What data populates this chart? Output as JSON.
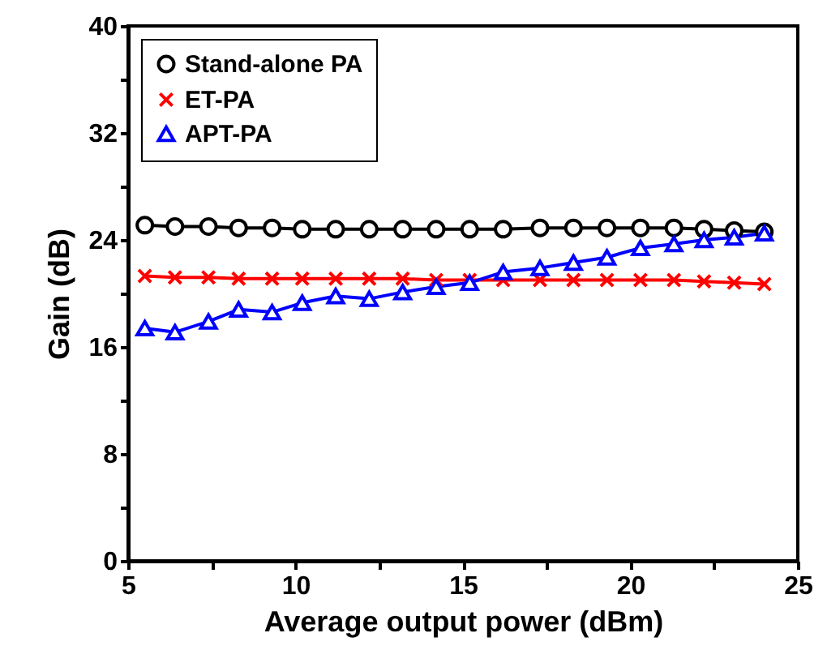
{
  "chart_data": {
    "type": "line",
    "xlabel": "Average output power (dBm)",
    "ylabel": "Gain (dB)",
    "x": [
      5.5,
      6.4,
      7.4,
      8.3,
      9.3,
      10.2,
      11.2,
      12.2,
      13.2,
      14.2,
      15.2,
      16.2,
      17.3,
      18.3,
      19.3,
      20.3,
      21.3,
      22.2,
      23.1,
      24.0
    ],
    "series": [
      {
        "name": "Stand-alone PA",
        "color": "#000000",
        "marker": "circle",
        "values": [
          25.1,
          25.0,
          25.0,
          24.9,
          24.9,
          24.8,
          24.8,
          24.8,
          24.8,
          24.8,
          24.8,
          24.8,
          24.9,
          24.9,
          24.9,
          24.9,
          24.9,
          24.8,
          24.7,
          24.6
        ]
      },
      {
        "name": "ET-PA",
        "color": "#ff0000",
        "marker": "cross",
        "values": [
          21.3,
          21.2,
          21.2,
          21.1,
          21.1,
          21.1,
          21.1,
          21.1,
          21.1,
          21.0,
          21.0,
          21.0,
          21.0,
          21.0,
          21.0,
          21.0,
          21.0,
          20.9,
          20.8,
          20.7
        ]
      },
      {
        "name": "APT-PA",
        "color": "#0000ff",
        "marker": "triangle",
        "values": [
          17.4,
          17.1,
          17.9,
          18.8,
          18.6,
          19.3,
          19.8,
          19.6,
          20.1,
          20.5,
          20.8,
          21.6,
          21.9,
          22.3,
          22.7,
          23.4,
          23.7,
          24.0,
          24.2,
          24.5
        ]
      }
    ],
    "xlim": [
      5,
      25
    ],
    "xticks": [
      5,
      {
        "value": 7.5,
        "label": null
      },
      10,
      {
        "value": 12.5,
        "label": null
      },
      15,
      {
        "value": 17.5,
        "label": null
      },
      20,
      {
        "value": 22.5,
        "label": null
      },
      25
    ],
    "ylim": [
      0,
      40
    ],
    "yticks": [
      0,
      {
        "value": 4,
        "label": null
      },
      8,
      {
        "value": 12,
        "label": null
      },
      16,
      {
        "value": 20,
        "label": null
      },
      24,
      {
        "value": 28,
        "label": null
      },
      32,
      {
        "value": 36,
        "label": null
      },
      40
    ],
    "grid": false,
    "legend": "top left",
    "line_style": "solid"
  }
}
